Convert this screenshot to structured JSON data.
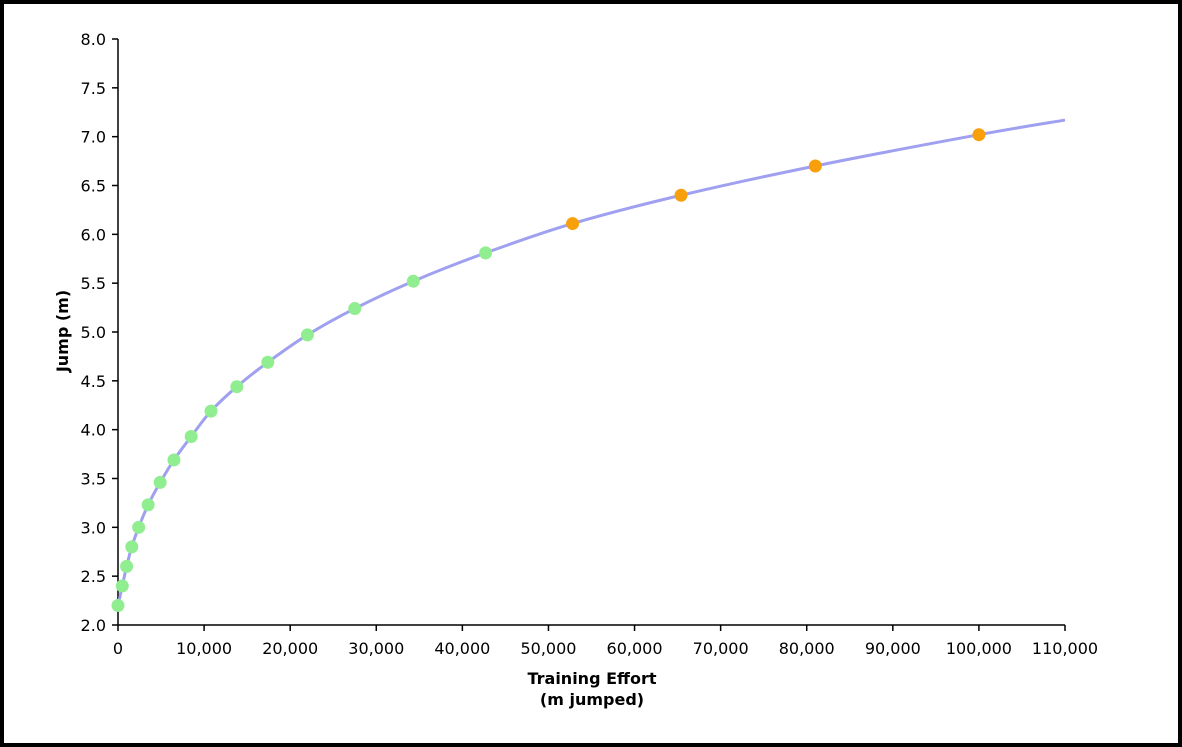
{
  "chart_data": {
    "type": "scatter",
    "title": "",
    "xlabel_lines": [
      "Training Effort",
      "(m jumped)"
    ],
    "ylabel": "Jump (m)",
    "xlim": [
      0,
      110000
    ],
    "ylim": [
      2.0,
      8.0
    ],
    "x_ticks": [
      0,
      10000,
      20000,
      30000,
      40000,
      50000,
      60000,
      70000,
      80000,
      90000,
      100000,
      110000
    ],
    "x_tick_labels": [
      "0",
      "10,000",
      "20,000",
      "30,000",
      "40,000",
      "50,000",
      "60,000",
      "70,000",
      "80,000",
      "90,000",
      "100,000",
      "110,000"
    ],
    "y_ticks": [
      2.0,
      2.5,
      3.0,
      3.5,
      4.0,
      4.5,
      5.0,
      5.5,
      6.0,
      6.5,
      7.0,
      7.5,
      8.0
    ],
    "y_tick_labels": [
      "2.0",
      "2.5",
      "3.0",
      "3.5",
      "4.0",
      "4.5",
      "5.0",
      "5.5",
      "6.0",
      "6.5",
      "7.0",
      "7.5",
      "8.0"
    ],
    "grid": false,
    "curve": {
      "color": "#a0a0f0",
      "points": [
        [
          0,
          2.2
        ],
        [
          500,
          2.4
        ],
        [
          1000,
          2.6
        ],
        [
          1600,
          2.8
        ],
        [
          2400,
          3.0
        ],
        [
          3500,
          3.23
        ],
        [
          4900,
          3.46
        ],
        [
          6500,
          3.69
        ],
        [
          8500,
          3.93
        ],
        [
          10800,
          4.19
        ],
        [
          13800,
          4.44
        ],
        [
          17400,
          4.69
        ],
        [
          22000,
          4.97
        ],
        [
          27500,
          5.24
        ],
        [
          34300,
          5.52
        ],
        [
          42700,
          5.81
        ],
        [
          52800,
          6.11
        ],
        [
          65400,
          6.4
        ],
        [
          81000,
          6.7
        ],
        [
          100000,
          7.02
        ],
        [
          110000,
          7.17
        ]
      ]
    },
    "series": [
      {
        "color": "#90ee90",
        "points": [
          [
            0,
            2.2
          ],
          [
            500,
            2.4
          ],
          [
            1000,
            2.6
          ],
          [
            1600,
            2.8
          ],
          [
            2400,
            3.0
          ],
          [
            3500,
            3.23
          ],
          [
            4900,
            3.46
          ],
          [
            6500,
            3.69
          ],
          [
            8500,
            3.93
          ],
          [
            10800,
            4.19
          ],
          [
            13800,
            4.44
          ],
          [
            17400,
            4.69
          ],
          [
            22000,
            4.97
          ],
          [
            27500,
            5.24
          ],
          [
            34300,
            5.52
          ],
          [
            42700,
            5.81
          ]
        ]
      },
      {
        "color": "#f8a00c",
        "points": [
          [
            52800,
            6.11
          ],
          [
            65400,
            6.4
          ],
          [
            81000,
            6.7
          ],
          [
            100000,
            7.02
          ]
        ]
      }
    ]
  }
}
